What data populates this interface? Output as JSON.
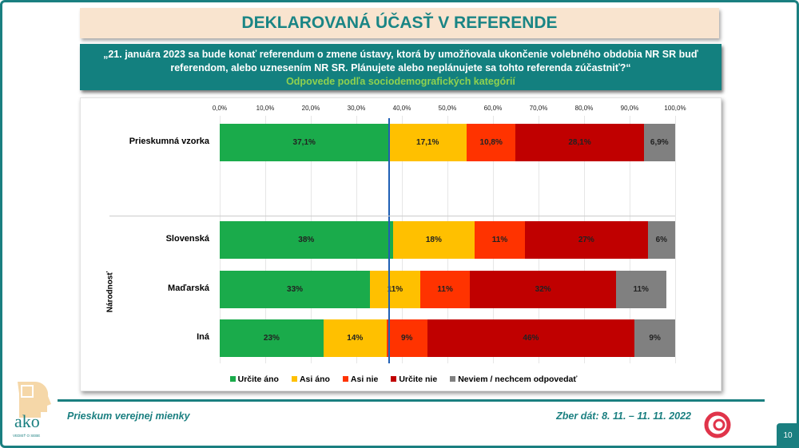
{
  "title": "DEKLAROVANÁ ÚČASŤ V REFERENDE",
  "question_line1": "„21. januára 2023 sa bude konať referendum o zmene ústavy, ktorá by umožňovala ukončenie volebného obdobia NR SR buď",
  "question_line2": "referendom, alebo uznesením NR SR. Plánujete alebo neplánujete sa tohto referenda zúčastniť?“",
  "subtitle": "Odpovede podľa sociodemografických kategórií",
  "chart_data": {
    "type": "bar",
    "orientation": "horizontal",
    "stacked": true,
    "xlim": [
      0,
      100
    ],
    "ticks": [
      "0,0%",
      "10,0%",
      "20,0%",
      "30,0%",
      "40,0%",
      "50,0%",
      "60,0%",
      "70,0%",
      "80,0%",
      "90,0%",
      "100,0%"
    ],
    "group_label": "Národnosť",
    "reference_line": 37.1,
    "legend_position": "bottom",
    "series": [
      {
        "name": "Určite áno",
        "color": "#1aab4b"
      },
      {
        "name": "Asi áno",
        "color": "#ffc000"
      },
      {
        "name": "Asi nie",
        "color": "#ff3300"
      },
      {
        "name": "Určite nie",
        "color": "#c00000"
      },
      {
        "name": "Neviem / nechcem odpovedať",
        "color": "#808080"
      }
    ],
    "rows": [
      {
        "label": "Prieskumná vzorka",
        "values": [
          37.1,
          17.1,
          10.8,
          28.1,
          6.9
        ],
        "labels": [
          "37,1%",
          "17,1%",
          "10,8%",
          "28,1%",
          "6,9%"
        ]
      },
      {
        "label": "Slovenská",
        "values": [
          38,
          18,
          11,
          27,
          6
        ],
        "labels": [
          "38%",
          "18%",
          "11%",
          "27%",
          "6%"
        ]
      },
      {
        "label": "Maďarská",
        "values": [
          33,
          11,
          11,
          32,
          11
        ],
        "labels": [
          "33%",
          "11%",
          "11%",
          "32%",
          "11%"
        ]
      },
      {
        "label": "Iná",
        "values": [
          23,
          14,
          9,
          46,
          9
        ],
        "labels": [
          "23%",
          "14%",
          "9%",
          "46%",
          "9%"
        ]
      }
    ]
  },
  "footer": {
    "left": "Prieskum verejnej mienky",
    "right": "Zber dát: 8. 11. – 11. 11. 2022",
    "page": "10",
    "logo_text": "ako",
    "logo_tagline": "VEDIEŤ O SEBE"
  }
}
